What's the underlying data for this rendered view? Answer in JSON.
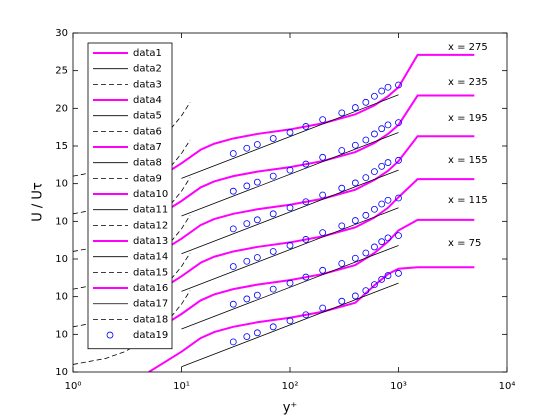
{
  "chart_data": {
    "type": "line",
    "xlabel": "y⁺",
    "ylabel": "U / Uτ",
    "xscale": "log",
    "xlim": [
      1,
      10000
    ],
    "xticks": [
      {
        "value": 1,
        "label": "10⁰"
      },
      {
        "value": 10,
        "label": "10¹"
      },
      {
        "value": 100,
        "label": "10²"
      },
      {
        "value": 1000,
        "label": "10³"
      },
      {
        "value": 10000,
        "label": "10⁴"
      }
    ],
    "ylim": [
      0,
      45
    ],
    "yticks": [
      {
        "value": 0,
        "label": "10"
      },
      {
        "value": 5,
        "label": "10"
      },
      10,
      {
        "value": 15,
        "label": "10"
      },
      {
        "value": 20,
        "label": "10"
      },
      {
        "value": 25,
        "label": "10"
      },
      {
        "value": 30,
        "label": "15"
      },
      {
        "value": 35,
        "label": "20"
      },
      {
        "value": 40,
        "label": "25"
      },
      {
        "value": 45,
        "label": "30"
      }
    ],
    "annotations": [
      "x = 275",
      "x = 235",
      "x = 195",
      "x = 155",
      "x = 115",
      "x = 75"
    ],
    "legend": "upper left",
    "series": [
      {
        "name": "data1",
        "color": "#ff00ff",
        "linestyle": "-",
        "x": [
          5,
          7,
          10,
          15,
          20,
          30,
          50,
          100,
          200,
          400,
          600,
          800,
          1000,
          1500,
          5000
        ],
        "values": [
          0,
          1.3,
          2.7,
          4.5,
          5.3,
          6.0,
          6.6,
          7.2,
          8.0,
          9.2,
          11.5,
          13.0,
          13.7,
          13.9,
          13.9
        ]
      },
      {
        "name": "data2",
        "color": "#000000",
        "linestyle": "-",
        "x": [
          10,
          1000
        ],
        "values": [
          0.7,
          11.8
        ]
      },
      {
        "name": "data3",
        "color": "#000000",
        "linestyle": "--",
        "x": [
          1,
          2,
          3,
          5,
          7,
          10,
          12
        ],
        "values": [
          1,
          1.8,
          2.7,
          4.5,
          6.3,
          9,
          10.8
        ]
      },
      {
        "name": "data4",
        "color": "#ff00ff",
        "linestyle": "-",
        "x": [
          5,
          7,
          10,
          15,
          20,
          30,
          50,
          100,
          200,
          400,
          600,
          800,
          1000,
          1500,
          5000
        ],
        "values": [
          5,
          6.3,
          7.7,
          9.5,
          10.3,
          11.0,
          11.6,
          12.2,
          13.0,
          14.2,
          15.8,
          17.3,
          18.8,
          20.2,
          20.2
        ]
      },
      {
        "name": "data5",
        "color": "#000000",
        "linestyle": "-",
        "x": [
          10,
          1000
        ],
        "values": [
          5.7,
          16.8
        ]
      },
      {
        "name": "data6",
        "color": "#000000",
        "linestyle": "--",
        "x": [
          1,
          2,
          3,
          5,
          7,
          10,
          12
        ],
        "values": [
          6,
          6.8,
          7.7,
          9.5,
          11.3,
          14,
          15.8
        ]
      },
      {
        "name": "data7",
        "color": "#ff00ff",
        "linestyle": "-",
        "x": [
          5,
          7,
          10,
          15,
          20,
          30,
          50,
          100,
          200,
          400,
          600,
          800,
          1000,
          1500,
          5000
        ],
        "values": [
          10,
          11.3,
          12.7,
          14.5,
          15.3,
          16.0,
          16.6,
          17.2,
          18.0,
          19.2,
          20.5,
          21.8,
          23.2,
          25.6,
          25.6
        ]
      },
      {
        "name": "data8",
        "color": "#000000",
        "linestyle": "-",
        "x": [
          10,
          1000
        ],
        "values": [
          10.7,
          21.8
        ]
      },
      {
        "name": "data9",
        "color": "#000000",
        "linestyle": "--",
        "x": [
          1,
          2,
          3,
          5,
          7,
          10,
          12
        ],
        "values": [
          11,
          11.8,
          12.7,
          14.5,
          16.3,
          19,
          20.8
        ]
      },
      {
        "name": "data10",
        "color": "#ff00ff",
        "linestyle": "-",
        "x": [
          5,
          7,
          10,
          15,
          20,
          30,
          50,
          100,
          200,
          400,
          600,
          800,
          1000,
          1500,
          5000
        ],
        "values": [
          15,
          16.3,
          17.7,
          19.5,
          20.3,
          21.0,
          21.6,
          22.2,
          23.0,
          24.2,
          25.5,
          26.7,
          28.0,
          31.3,
          31.3
        ]
      },
      {
        "name": "data11",
        "color": "#000000",
        "linestyle": "-",
        "x": [
          10,
          1000
        ],
        "values": [
          15.7,
          26.8
        ]
      },
      {
        "name": "data12",
        "color": "#000000",
        "linestyle": "--",
        "x": [
          1,
          2,
          3,
          5,
          7,
          10,
          12
        ],
        "values": [
          16,
          16.8,
          17.7,
          19.5,
          21.3,
          24,
          25.8
        ]
      },
      {
        "name": "data13",
        "color": "#ff00ff",
        "linestyle": "-",
        "x": [
          5,
          7,
          10,
          15,
          20,
          30,
          50,
          100,
          200,
          400,
          600,
          800,
          1000,
          1500,
          5000
        ],
        "values": [
          20,
          21.3,
          22.7,
          24.5,
          25.3,
          26.0,
          26.6,
          27.2,
          28.0,
          29.2,
          30.4,
          31.6,
          32.8,
          36.7,
          36.7
        ]
      },
      {
        "name": "data14",
        "color": "#000000",
        "linestyle": "-",
        "x": [
          10,
          1000
        ],
        "values": [
          20.7,
          31.8
        ]
      },
      {
        "name": "data15",
        "color": "#000000",
        "linestyle": "--",
        "x": [
          1,
          2,
          3,
          5,
          7,
          10,
          12
        ],
        "values": [
          21,
          21.8,
          22.7,
          24.5,
          26.3,
          29,
          30.8
        ]
      },
      {
        "name": "data16",
        "color": "#ff00ff",
        "linestyle": "-",
        "x": [
          5,
          7,
          10,
          15,
          20,
          30,
          50,
          100,
          200,
          400,
          600,
          800,
          1000,
          1500,
          5000
        ],
        "values": [
          25,
          26.3,
          27.7,
          29.5,
          30.3,
          31.0,
          31.6,
          32.2,
          33.0,
          34.2,
          35.4,
          36.6,
          37.8,
          42.1,
          42.1
        ]
      },
      {
        "name": "data17",
        "color": "#000000",
        "linestyle": "-",
        "x": [
          10,
          1000
        ],
        "values": [
          25.7,
          36.8
        ]
      },
      {
        "name": "data18",
        "color": "#000000",
        "linestyle": "--",
        "x": [
          1,
          2,
          3,
          5,
          7,
          10,
          12
        ],
        "values": [
          26,
          26.8,
          27.7,
          29.5,
          31.3,
          34,
          35.8
        ]
      },
      {
        "name": "data19",
        "color": "#0000ff",
        "linestyle": "none",
        "marker": "o",
        "x": [
          30,
          40,
          50,
          70,
          100,
          140,
          200,
          300,
          400,
          500,
          600,
          700,
          800,
          1000,
          30,
          40,
          50,
          70,
          100,
          140,
          200,
          300,
          400,
          500,
          600,
          700,
          800,
          1000,
          30,
          40,
          50,
          70,
          100,
          140,
          200,
          300,
          400,
          500,
          600,
          700,
          800,
          1000,
          30,
          40,
          50,
          70,
          100,
          140,
          200,
          300,
          400,
          500,
          600,
          700,
          800,
          1000,
          30,
          40,
          50,
          70,
          100,
          140,
          200,
          300,
          400,
          500,
          600,
          700,
          800,
          1000,
          30,
          40,
          50,
          70,
          100,
          140,
          200,
          300,
          400,
          500,
          600,
          700,
          800,
          1000
        ],
        "values": [
          4.0,
          4.7,
          5.2,
          6.0,
          6.8,
          7.6,
          8.5,
          9.4,
          10.1,
          10.8,
          11.6,
          12.3,
          12.8,
          13.1,
          9.0,
          9.7,
          10.2,
          11.0,
          11.8,
          12.6,
          13.5,
          14.4,
          15.1,
          15.8,
          16.6,
          17.3,
          17.8,
          18.1,
          14.0,
          14.7,
          15.2,
          16.0,
          16.8,
          17.6,
          18.5,
          19.4,
          20.1,
          20.8,
          21.6,
          22.3,
          22.8,
          23.1,
          19.0,
          19.7,
          20.2,
          21.0,
          21.8,
          22.6,
          23.5,
          24.4,
          25.1,
          25.8,
          26.6,
          27.3,
          27.8,
          28.1,
          24.0,
          24.7,
          25.2,
          26.0,
          26.8,
          27.6,
          28.5,
          29.4,
          30.1,
          30.8,
          31.6,
          32.3,
          32.8,
          33.1,
          29.0,
          29.7,
          30.2,
          31.0,
          31.8,
          32.6,
          33.5,
          34.4,
          35.1,
          35.8,
          36.6,
          37.3,
          37.8,
          38.1
        ]
      }
    ]
  }
}
